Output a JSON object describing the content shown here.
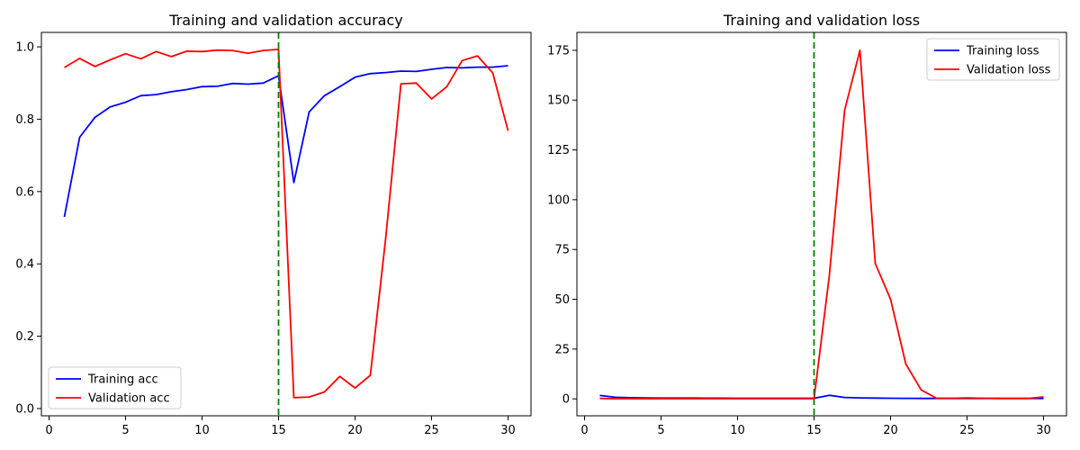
{
  "colors": {
    "training": "#0000ff",
    "validation": "#ff0000",
    "marker": "#008000"
  },
  "chart_data": [
    {
      "type": "line",
      "title": "Training and validation accuracy",
      "xlabel": "",
      "ylabel": "",
      "xlim": [
        -0.5,
        31.5
      ],
      "ylim": [
        -0.02,
        1.04
      ],
      "xticks": [
        0,
        5,
        10,
        15,
        20,
        25,
        30
      ],
      "yticks": [
        0.0,
        0.2,
        0.4,
        0.6,
        0.8,
        1.0
      ],
      "ytick_decimals": 1,
      "grid": false,
      "legend_position": "lower-left",
      "vertical_line": 15,
      "x": [
        1,
        2,
        3,
        4,
        5,
        6,
        7,
        8,
        9,
        10,
        11,
        12,
        13,
        14,
        15,
        16,
        17,
        18,
        19,
        20,
        21,
        22,
        23,
        24,
        25,
        26,
        27,
        28,
        29,
        30
      ],
      "series": [
        {
          "name": "Training acc",
          "color_key": "training",
          "values": [
            0.53,
            0.75,
            0.805,
            0.834,
            0.847,
            0.865,
            0.868,
            0.876,
            0.882,
            0.89,
            0.891,
            0.899,
            0.897,
            0.9,
            0.92,
            0.625,
            0.82,
            0.865,
            0.89,
            0.916,
            0.926,
            0.929,
            0.933,
            0.932,
            0.938,
            0.943,
            0.942,
            0.944,
            0.944,
            0.948
          ]
        },
        {
          "name": "Validation acc",
          "color_key": "validation",
          "values": [
            0.943,
            0.968,
            0.946,
            0.964,
            0.981,
            0.967,
            0.987,
            0.973,
            0.988,
            0.987,
            0.991,
            0.99,
            0.982,
            0.99,
            0.993,
            0.03,
            0.032,
            0.046,
            0.089,
            0.057,
            0.092,
            0.47,
            0.898,
            0.9,
            0.856,
            0.89,
            0.962,
            0.975,
            0.928,
            0.768
          ]
        }
      ]
    },
    {
      "type": "line",
      "title": "Training and validation loss",
      "xlabel": "",
      "ylabel": "",
      "xlim": [
        -0.5,
        31.5
      ],
      "ylim": [
        -8.5,
        184
      ],
      "xticks": [
        0,
        5,
        10,
        15,
        20,
        25,
        30
      ],
      "yticks": [
        0,
        25,
        50,
        75,
        100,
        125,
        150,
        175
      ],
      "ytick_decimals": 0,
      "grid": false,
      "legend_position": "upper-right",
      "vertical_line": 15,
      "x": [
        1,
        2,
        3,
        4,
        5,
        6,
        7,
        8,
        9,
        10,
        11,
        12,
        13,
        14,
        15,
        16,
        17,
        18,
        19,
        20,
        21,
        22,
        23,
        24,
        25,
        26,
        27,
        28,
        29,
        30
      ],
      "series": [
        {
          "name": "Training loss",
          "color_key": "training",
          "values": [
            1.7,
            0.8,
            0.6,
            0.5,
            0.4,
            0.4,
            0.4,
            0.35,
            0.35,
            0.3,
            0.3,
            0.3,
            0.3,
            0.3,
            0.3,
            1.8,
            0.7,
            0.5,
            0.4,
            0.3,
            0.25,
            0.2,
            0.2,
            0.2,
            0.2,
            0.2,
            0.2,
            0.2,
            0.2,
            0.2
          ]
        },
        {
          "name": "Validation loss",
          "color_key": "validation",
          "values": [
            0.2,
            0.1,
            0.1,
            0.1,
            0.1,
            0.1,
            0.1,
            0.1,
            0.1,
            0.1,
            0.1,
            0.1,
            0.1,
            0.1,
            0.1,
            62.0,
            145.0,
            175.0,
            68.0,
            50.0,
            17.5,
            4.5,
            0.3,
            0.3,
            0.5,
            0.3,
            0.2,
            0.2,
            0.2,
            1.0
          ]
        }
      ]
    }
  ]
}
